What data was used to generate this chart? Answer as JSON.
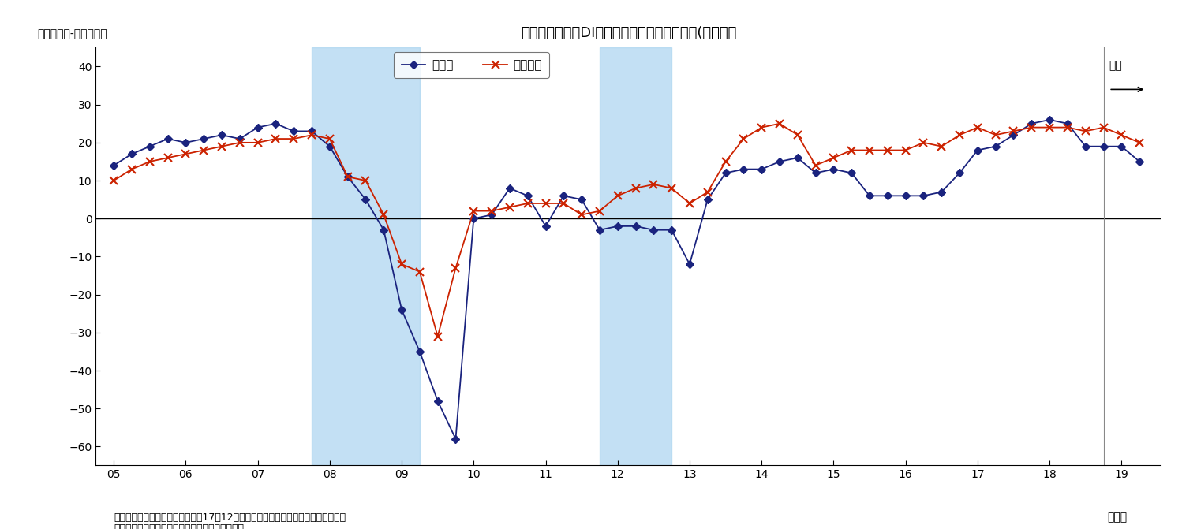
{
  "title": "足元の業況判断DIは小幅改善・先行きは悪化(大企業）",
  "ylabel": "（「良い」-「悪い」）",
  "xlabel_year": "（年）",
  "note_line1": "（注）シャドーは景気後退期間、17年12月調査以降は調査対象見直し後の新ベース",
  "note_line2": "（資料）日本銀行「全国企業短期経済観測調査」",
  "yutoku_label": "予測",
  "ylim": [
    -65,
    45
  ],
  "yticks": [
    -60,
    -50,
    -40,
    -30,
    -20,
    -10,
    0,
    10,
    20,
    30,
    40
  ],
  "shadow1_x_start": 7.75,
  "shadow1_x_end": 9.25,
  "shadow2_x_start": 11.75,
  "shadow2_x_end": 12.75,
  "forecast_x": 18.75,
  "xlim_left": 4.75,
  "xlim_right": 19.55,
  "mfg_color": "#1a237e",
  "nonmfg_color": "#cc2200",
  "mfg_label": "製造業",
  "nonmfg_label": "非製造業",
  "shadow_color": "#aad4f0",
  "shadow_alpha": 0.7,
  "mfg_x": [
    5.0,
    5.25,
    5.5,
    5.75,
    6.0,
    6.25,
    6.5,
    6.75,
    7.0,
    7.25,
    7.5,
    7.75,
    8.0,
    8.25,
    8.5,
    8.75,
    9.0,
    9.25,
    9.5,
    9.75,
    10.0,
    10.25,
    10.5,
    10.75,
    11.0,
    11.25,
    11.5,
    11.75,
    12.0,
    12.25,
    12.5,
    12.75,
    13.0,
    13.25,
    13.5,
    13.75,
    14.0,
    14.25,
    14.5,
    14.75,
    15.0,
    15.25,
    15.5,
    15.75,
    16.0,
    16.25,
    16.5,
    16.75,
    17.0,
    17.25,
    17.5,
    17.75,
    18.0,
    18.25,
    18.5,
    18.75,
    19.0,
    19.25
  ],
  "mfg_y": [
    14,
    17,
    19,
    21,
    20,
    21,
    22,
    21,
    24,
    25,
    23,
    23,
    19,
    11,
    5,
    -3,
    -24,
    -35,
    -48,
    -58,
    0,
    1,
    8,
    6,
    -2,
    6,
    5,
    -3,
    -2,
    -2,
    -3,
    -3,
    -12,
    5,
    12,
    13,
    13,
    15,
    16,
    12,
    13,
    12,
    6,
    6,
    6,
    6,
    7,
    12,
    18,
    19,
    22,
    25,
    26,
    25,
    19,
    19,
    19,
    15
  ],
  "nonmfg_x": [
    5.0,
    5.25,
    5.5,
    5.75,
    6.0,
    6.25,
    6.5,
    6.75,
    7.0,
    7.25,
    7.5,
    7.75,
    8.0,
    8.25,
    8.5,
    8.75,
    9.0,
    9.25,
    9.5,
    9.75,
    10.0,
    10.25,
    10.5,
    10.75,
    11.0,
    11.25,
    11.5,
    11.75,
    12.0,
    12.25,
    12.5,
    12.75,
    13.0,
    13.25,
    13.5,
    13.75,
    14.0,
    14.25,
    14.5,
    14.75,
    15.0,
    15.25,
    15.5,
    15.75,
    16.0,
    16.25,
    16.5,
    16.75,
    17.0,
    17.25,
    17.5,
    17.75,
    18.0,
    18.25,
    18.5,
    18.75,
    19.0,
    19.25
  ],
  "nonmfg_y": [
    10,
    13,
    15,
    16,
    17,
    18,
    19,
    20,
    20,
    21,
    21,
    22,
    21,
    11,
    10,
    1,
    -12,
    -14,
    -31,
    -13,
    2,
    2,
    3,
    4,
    4,
    4,
    1,
    2,
    6,
    8,
    9,
    8,
    4,
    7,
    15,
    21,
    24,
    25,
    22,
    14,
    16,
    18,
    18,
    18,
    18,
    20,
    19,
    22,
    24,
    22,
    23,
    24,
    24,
    24,
    23,
    24,
    22,
    20
  ]
}
